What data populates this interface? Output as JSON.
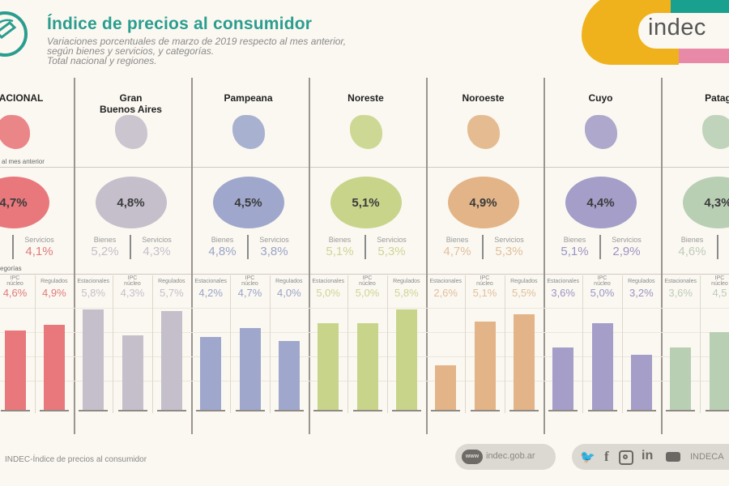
{
  "header": {
    "title": "Índice de precios al consumidor",
    "subtitle_lines": [
      "Variaciones porcentuales de marzo de 2019 respecto al mes anterior,",
      "según bienes y servicios, y categorías.",
      "Total nacional y regiones."
    ],
    "brand": "indec",
    "brand_colors": {
      "yellow": "#efb21c",
      "teal": "#1aa08f",
      "pink": "#e889a8"
    },
    "title_color": "#2a9d8f"
  },
  "labels": {
    "monthly_note": "al mes anterior",
    "categories_note": "egorías",
    "bienes": "Bienes",
    "servicios": "Servicios",
    "estacionales": "Estacionales",
    "ipc_nucleo_1": "IPC",
    "ipc_nucleo_2": "núcleo",
    "regulados": "Regulados"
  },
  "footer": {
    "source": "INDEC-Índice de precios al consumidor",
    "website": "indec.gob.ar",
    "www_icon": "www",
    "social_handle": "INDECA",
    "social_icons": [
      "twitter-icon",
      "facebook-icon",
      "instagram-icon",
      "linkedin-icon",
      "youtube-icon"
    ]
  },
  "chart_data": {
    "type": "bar",
    "title": "Índice de precios al consumidor — marzo 2019, variación % mensual",
    "categories": [
      "Estacionales",
      "IPC núcleo",
      "Regulados"
    ],
    "ylim": [
      0,
      6.5
    ],
    "grid": true,
    "regions": [
      {
        "name": "TOTAL NACIONAL",
        "name_visible": "L NACIONAL",
        "color": "#e8787c",
        "text_color": "#e07a7c",
        "general": "4,7%",
        "general_value": 4.7,
        "bienes": "",
        "servicios": "4,1%",
        "values": [
          null,
          4.6,
          4.9
        ],
        "value_labels": [
          "",
          "4,6%",
          "4,9%"
        ]
      },
      {
        "name_line1": "Gran",
        "name_line2": "Buenos Aires",
        "color": "#c4bfcb",
        "text_color": "#c4bfcb",
        "general": "4,8%",
        "general_value": 4.8,
        "bienes": "5,2%",
        "servicios": "4,3%",
        "values": [
          5.8,
          4.3,
          5.7
        ],
        "value_labels": [
          "5,8%",
          "4,3%",
          "5,7%"
        ]
      },
      {
        "name": "Pampeana",
        "color": "#9fa8cc",
        "text_color": "#9aa3c8",
        "general": "4,5%",
        "general_value": 4.5,
        "bienes": "4,8%",
        "servicios": "3,8%",
        "values": [
          4.2,
          4.7,
          4.0
        ],
        "value_labels": [
          "4,2%",
          "4,7%",
          "4,0%"
        ]
      },
      {
        "name": "Noreste",
        "color": "#c8d48a",
        "text_color": "#cdd596",
        "general": "5,1%",
        "general_value": 5.1,
        "bienes": "5,1%",
        "servicios": "5,3%",
        "values": [
          5.0,
          5.0,
          5.8
        ],
        "value_labels": [
          "5,0%",
          "5,0%",
          "5,8%"
        ]
      },
      {
        "name": "Noroeste",
        "color": "#e2b487",
        "text_color": "#e0c09c",
        "general": "4,9%",
        "general_value": 4.9,
        "bienes": "4,7%",
        "servicios": "5,3%",
        "values": [
          2.6,
          5.1,
          5.5
        ],
        "value_labels": [
          "2,6%",
          "5,1%",
          "5,5%"
        ]
      },
      {
        "name": "Cuyo",
        "color": "#a49ec8",
        "text_color": "#9a94c4",
        "general": "4,4%",
        "general_value": 4.4,
        "bienes": "5,1%",
        "servicios": "2,9%",
        "values": [
          3.6,
          5.0,
          3.2
        ],
        "value_labels": [
          "3,6%",
          "5,0%",
          "3,2%"
        ]
      },
      {
        "name": "Patagonia",
        "name_visible": "Patag",
        "color": "#b8cfb4",
        "text_color": "#bdccb9",
        "general": "4,3%",
        "general_value": 4.3,
        "bienes": "4,6%",
        "servicios": "",
        "values": [
          3.6,
          4.5,
          null
        ],
        "value_labels": [
          "3,6%",
          "4,5",
          ""
        ]
      }
    ]
  }
}
